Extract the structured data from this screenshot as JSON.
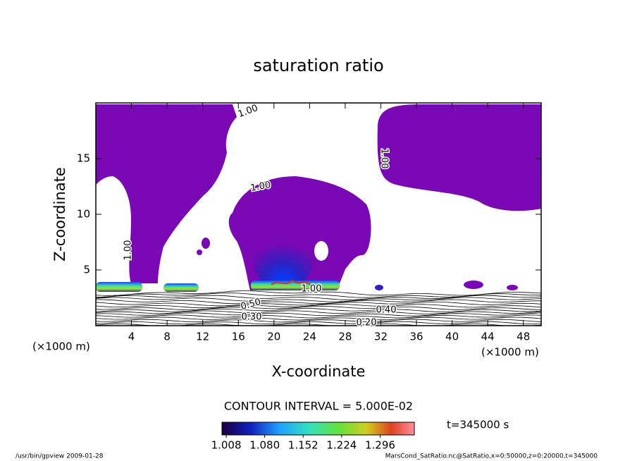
{
  "chart_data": {
    "type": "contour",
    "title": "saturation ratio",
    "x_label": "X-coordinate",
    "y_label": "Z-coordinate",
    "x_unit": "(×1000 m)",
    "y_unit": "(×1000 m)",
    "xlim": [
      0,
      50
    ],
    "xticks": [
      4,
      8,
      12,
      16,
      20,
      24,
      28,
      32,
      36,
      40,
      44,
      48
    ],
    "ylim": [
      0,
      20
    ],
    "yticks": [
      5,
      10,
      15
    ],
    "fill_color": "#7a08b4",
    "contour_labels": [
      "1.00",
      "1.00",
      "1.00",
      "1.00",
      "1.00",
      "0.50",
      "0.30",
      "0.40",
      "0.20"
    ],
    "contour_interval": "CONTOUR INTERVAL = 5.000E-02",
    "colorbar": {
      "clim": [
        1.0,
        1.36
      ],
      "ticks": [
        {
          "value": 1.008,
          "label": "1.008"
        },
        {
          "value": 1.08,
          "label": "1.080"
        },
        {
          "value": 1.152,
          "label": "1.152"
        },
        {
          "value": 1.224,
          "label": "1.224"
        },
        {
          "value": 1.296,
          "label": "1.296"
        }
      ]
    },
    "time_label": "t=345000 s",
    "footer_left": "/usr/bin/gpview  2009-01-28",
    "footer_right": "MarsCond_SatRatio.nc@SatRatio,x=0:50000,z=0:20000,t=345000"
  }
}
